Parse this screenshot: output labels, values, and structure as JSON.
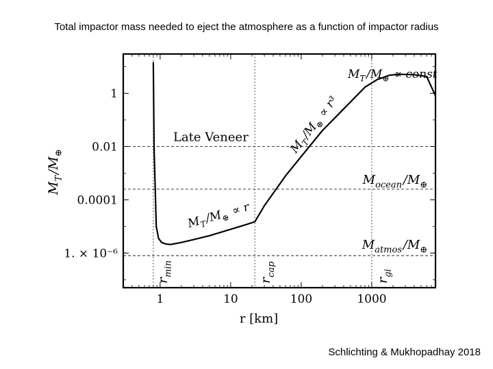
{
  "slide": {
    "title": "Total impactor mass needed to eject the atmosphere as a function of impactor radius",
    "credit": "Schlichting & Mukhopadhay 2018"
  },
  "chart_data": {
    "type": "line",
    "title": "",
    "xlabel": "r [km]",
    "ylabel": "M_T/M_⊕",
    "x_scale": "log",
    "y_scale": "log",
    "xlim": [
      0.3,
      8000
    ],
    "ylim": [
      5e-08,
      30
    ],
    "x_ticks": [
      {
        "value": 1,
        "label": "1"
      },
      {
        "value": 10,
        "label": "10"
      },
      {
        "value": 100,
        "label": "100"
      },
      {
        "value": 1000,
        "label": "1000"
      }
    ],
    "y_ticks": [
      {
        "value": 1,
        "label": "1"
      },
      {
        "value": 0.01,
        "label": "0.01"
      },
      {
        "value": 0.0001,
        "label": "0.0001"
      },
      {
        "value": 1e-06,
        "label": "1. × 10⁻⁶"
      }
    ],
    "series": [
      {
        "name": "M_T/M_⊕",
        "x": [
          0.8,
          0.82,
          0.88,
          0.95,
          1.05,
          1.2,
          1.4,
          2,
          3,
          5,
          8,
          12,
          17,
          22,
          30,
          60,
          100,
          200,
          400,
          800,
          1200,
          1800,
          2500,
          4000,
          6000,
          8000
        ],
        "y": [
          15,
          0.01,
          1e-05,
          3.5e-06,
          2.5e-06,
          2.2e-06,
          2.1e-06,
          2.5e-06,
          3.2e-06,
          4.5e-06,
          6.5e-06,
          9e-06,
          1.2e-05,
          1.5e-05,
          6e-05,
          0.0008,
          0.0042,
          0.04,
          0.26,
          1.7,
          3.3,
          4.8,
          5.2,
          5.0,
          4.3,
          0.8
        ]
      }
    ],
    "hlines": [
      {
        "y": 0.01,
        "label": "Late Veneer"
      },
      {
        "y": 0.00025,
        "label": "M_ocean/M_⊕"
      },
      {
        "y": 8e-07,
        "label": "M_atmos/M_⊕"
      }
    ],
    "vlines": [
      {
        "x": 0.8,
        "label": "r_min"
      },
      {
        "x": 22,
        "label": "r_cap"
      },
      {
        "x": 1000,
        "label": "r_gi"
      }
    ],
    "annotations": [
      {
        "text": "M_T/M_⊕ ∝ r",
        "x": 10,
        "y": 6e-05
      },
      {
        "text": "M_T/M_⊕ ∝ r³",
        "x": 30,
        "y": 0.2
      },
      {
        "text": "M_T/M_⊕ ∝ const",
        "x": 1000,
        "y": 12
      }
    ]
  }
}
